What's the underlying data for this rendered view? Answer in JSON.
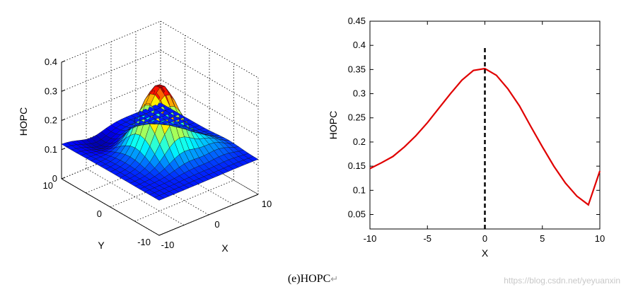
{
  "caption": "(e)HOPC",
  "caption_mark": "↵",
  "watermark": "https://blog.csdn.net/yeyuanxin",
  "colors": {
    "line": "#e00000",
    "marker": "#000000",
    "axis": "#000000"
  },
  "chart_data": [
    {
      "type": "surface",
      "xlabel": "X",
      "ylabel": "Y",
      "zlabel": "HOPC",
      "xlim": [
        -10,
        10
      ],
      "ylim": [
        -10,
        10
      ],
      "zlim": [
        0,
        0.4
      ],
      "xticks": [
        "-10",
        "0",
        "10"
      ],
      "yticks": [
        "-10",
        "0",
        "10"
      ],
      "zticks": [
        "0",
        "0.1",
        "0.2",
        "0.3",
        "0.4"
      ],
      "grid": true,
      "colormap": "jet",
      "peak": {
        "x": 0,
        "y": 0,
        "z": 0.35
      },
      "edge_value": 0.12
    },
    {
      "type": "line",
      "xlabel": "X",
      "ylabel": "HOPC",
      "xlim": [
        -10,
        10
      ],
      "ylim": [
        0.02,
        0.45
      ],
      "xticks": [
        "-10",
        "-5",
        "0",
        "5",
        "10"
      ],
      "yticks": [
        "0.05",
        "0.1",
        "0.15",
        "0.2",
        "0.25",
        "0.3",
        "0.35",
        "0.4",
        "0.45"
      ],
      "grid": false,
      "series": [
        {
          "x": [
            -10,
            -9,
            -8,
            -7,
            -6,
            -5,
            -4,
            -3,
            -2,
            -1,
            0,
            1,
            2,
            3,
            4,
            5,
            6,
            7,
            8,
            9,
            10
          ],
          "values": [
            0.145,
            0.157,
            0.17,
            0.19,
            0.213,
            0.24,
            0.27,
            0.3,
            0.328,
            0.348,
            0.352,
            0.338,
            0.31,
            0.275,
            0.232,
            0.19,
            0.15,
            0.115,
            0.088,
            0.07,
            0.14
          ]
        }
      ],
      "marker_line": {
        "x": 0,
        "y_from": 0.02,
        "y_to": 0.4
      }
    }
  ]
}
